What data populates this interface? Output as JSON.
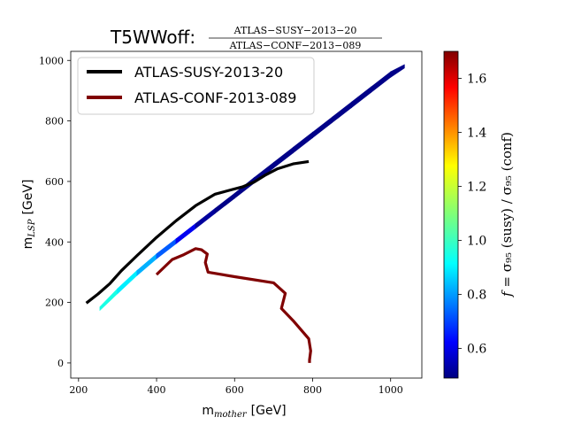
{
  "chart_data": {
    "type": "line",
    "title_prefix": "T5WWoff:",
    "title_numerator": "ATLAS−SUSY−2013−20",
    "title_denominator": "ATLAS−CONF−2013−089",
    "xlabel_main": "m",
    "xlabel_sub": "mother",
    "xlabel_unit": "[GeV]",
    "ylabel_main": "m",
    "ylabel_sub": "LSP",
    "ylabel_unit": "[GeV]",
    "xlim": [
      180,
      1080
    ],
    "ylim": [
      -50,
      1030
    ],
    "xticks": [
      "200",
      "400",
      "600",
      "800",
      "1000"
    ],
    "xtick_values": [
      200,
      400,
      600,
      800,
      1000
    ],
    "yticks": [
      "0",
      "200",
      "400",
      "600",
      "800",
      "1000"
    ],
    "ytick_values": [
      0,
      200,
      400,
      600,
      800,
      1000
    ],
    "grid": false,
    "legend_position": "top-left",
    "series": [
      {
        "name": "ATLAS-SUSY-2013-20",
        "color": "#000000",
        "x": [
          220,
          250,
          280,
          310,
          350,
          400,
          450,
          500,
          550,
          590,
          620,
          650,
          680,
          710,
          750,
          790
        ],
        "y": [
          198,
          228,
          262,
          305,
          355,
          415,
          470,
          520,
          558,
          572,
          582,
          598,
          622,
          642,
          658,
          666
        ]
      },
      {
        "name": "ATLAS-CONF-2013-089",
        "color": "#800000",
        "x": [
          400,
          440,
          470,
          500,
          515,
          530,
          525,
          532,
          600,
          700,
          730,
          720,
          750,
          790,
          795,
          792,
          792
        ],
        "y": [
          292,
          342,
          358,
          378,
          374,
          360,
          332,
          300,
          285,
          265,
          230,
          180,
          140,
          80,
          40,
          10,
          0
        ]
      }
    ],
    "heat_band": {
      "x": [
        255,
        300,
        350,
        400,
        450,
        500,
        550,
        600,
        650,
        700,
        750,
        800,
        850,
        900,
        950,
        1000,
        1035
      ],
      "lower": [
        175,
        230,
        290,
        345,
        395,
        445,
        495,
        545,
        595,
        645,
        695,
        745,
        795,
        845,
        895,
        945,
        975
      ],
      "upper": [
        185,
        245,
        305,
        360,
        410,
        460,
        510,
        560,
        612,
        662,
        712,
        762,
        812,
        862,
        912,
        962,
        985
      ],
      "f": [
        1.0,
        0.95,
        0.9,
        0.8,
        0.7,
        0.55,
        0.5,
        0.5,
        0.5,
        0.5,
        0.5,
        0.5,
        0.5,
        0.5,
        0.5,
        0.5,
        0.5
      ]
    },
    "colorbar": {
      "label_prefix": "f = ",
      "label_body": "σ₉₅ (susy) / σ₉₅ (conf)",
      "min": 0.49,
      "max": 1.7,
      "ticks": [
        "0.6",
        "0.8",
        "1.0",
        "1.2",
        "1.4",
        "1.6"
      ],
      "tick_values": [
        0.6,
        0.8,
        1.0,
        1.2,
        1.4,
        1.6
      ],
      "colormap": "jet"
    }
  }
}
